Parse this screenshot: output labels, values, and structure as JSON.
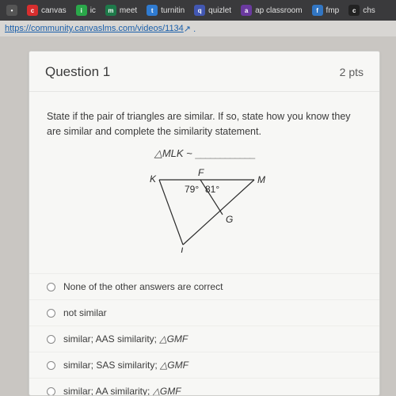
{
  "bookmarks": [
    {
      "label": "e",
      "bg": "#555555",
      "text": ""
    },
    {
      "label": "canvas",
      "bg": "#d82e2e",
      "text": "canvas"
    },
    {
      "label": "ic",
      "bg": "#2aa84a",
      "text": "ic"
    },
    {
      "label": "meet",
      "bg": "#1e7a4a",
      "text": "meet"
    },
    {
      "label": "turnitin",
      "bg": "#2f7bd1",
      "text": "turnitin"
    },
    {
      "label": "quizlet",
      "bg": "#4257b2",
      "text": "quizlet"
    },
    {
      "label": "ap classroom",
      "bg": "#6b3aa0",
      "text": "ap classroom"
    },
    {
      "label": "fmp",
      "bg": "#3276c3",
      "text": "fmp"
    },
    {
      "label": "chs",
      "bg": "#222222",
      "text": "chs"
    }
  ],
  "url_bar": {
    "prefix": "",
    "link": "https://community.canvaslms.com/videos/1134",
    "suffix": " ↗ ."
  },
  "question": {
    "header_title": "Question 1",
    "points": "2 pts",
    "prompt": "State if the pair of triangles are similar.  If so, state how you know they are similar and complete the similarity statement.",
    "sim_prefix": "△MLK ~",
    "sim_blank": "____________"
  },
  "figure": {
    "type": "triangle-diagram",
    "labels": {
      "K": "K",
      "F": "F",
      "M": "M",
      "G": "G",
      "L": "L"
    },
    "angles": {
      "left": "79°",
      "right": "81°"
    },
    "stroke": "#2b2b2b",
    "font": "12px"
  },
  "answers": [
    "None of the other answers are correct",
    "not similar",
    "similar; AAS similarity; △GMF",
    "similar; SAS similarity; △GMF",
    "similar;  AA similarity; △GMF"
  ],
  "colors": {
    "page_bg": "#c9c6c2",
    "card_bg": "#f7f7f5",
    "border": "#e6e6e3"
  }
}
